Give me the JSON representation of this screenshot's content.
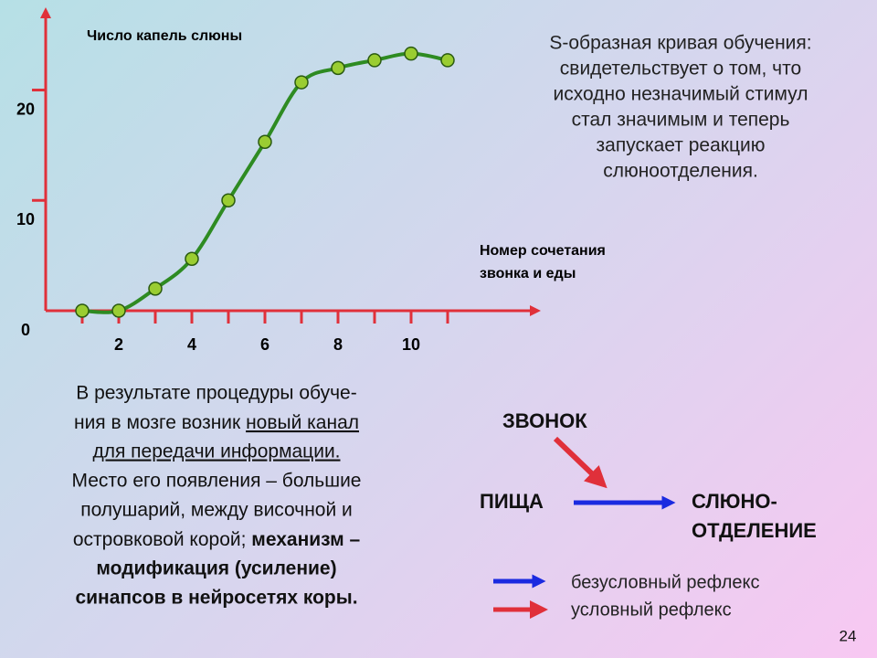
{
  "chart_data": {
    "type": "scatter",
    "y_label": "Число капель слюны",
    "x_label": [
      "Номер сочетания",
      "звонка и еды"
    ],
    "x": [
      1,
      2,
      3,
      4,
      5,
      6,
      7,
      8,
      9,
      10,
      11
    ],
    "values": [
      0,
      0,
      2,
      4.7,
      10,
      15.3,
      20.7,
      22,
      22.7,
      23.3,
      22.7
    ],
    "color": "#9acd32",
    "line_color": "#2e8b22",
    "axis_color": "#e0303a",
    "xlim": [
      0,
      13.4
    ],
    "ylim": [
      0,
      27
    ],
    "xticks": [
      2,
      4,
      6,
      8,
      10
    ],
    "xticks_minor": [
      1,
      3,
      5,
      7,
      9,
      11
    ],
    "yticks": [
      0,
      10,
      20
    ]
  },
  "caption": [
    "S-образная кривая обучения:",
    "свидетельствует о том, что",
    "исходно незначимый стимул",
    "стал значимым и теперь",
    "запускает реакцию",
    "слюноотделения."
  ],
  "body": {
    "lines": [
      [
        "В результате процедуры обуче-"
      ],
      [
        "ния в мозге возник ",
        "новый канал"
      ],
      [
        "для передачи информации."
      ],
      [
        "Место его появления – большие"
      ],
      [
        "полушарий, между височной и"
      ],
      [
        "островковой корой; ",
        "механизм –"
      ],
      [
        "модификация (усиление)"
      ],
      [
        "синапсов в нейросетях коры."
      ]
    ]
  },
  "diagram": {
    "bell": "ЗВОНОК",
    "food": "ПИЩА",
    "response": [
      "СЛЮНО-",
      "ОТДЕЛЕНИЕ"
    ],
    "legend": [
      "безусловный рефлекс",
      "условный рефлекс"
    ]
  },
  "page_number": "24"
}
